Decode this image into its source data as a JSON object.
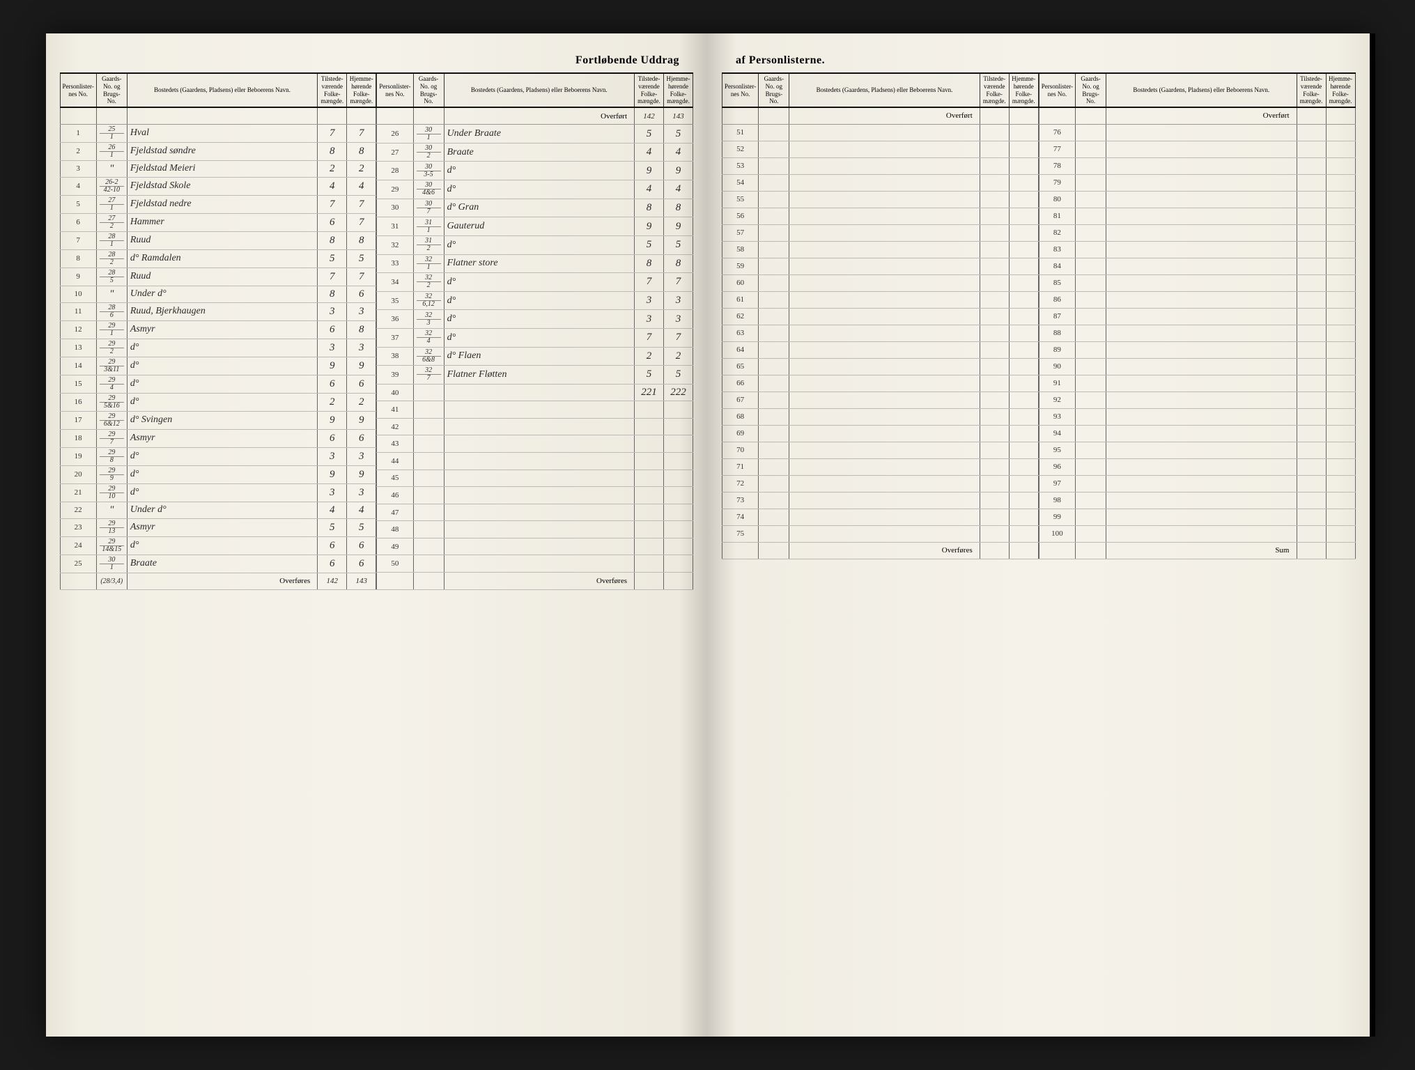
{
  "title_left": "Fortløbende Uddrag",
  "title_right": "af Personlisterne.",
  "headers": {
    "personliste": "Personlister-nes No.",
    "gaards": "Gaards-No. og Brugs-No.",
    "bosted": "Bostedets (Gaardens, Pladsens) eller Beboerens Navn.",
    "tilstede": "Tilstede-værende Folke-mængde.",
    "hjemme": "Hjemme-hørende Folke-mængde."
  },
  "overfort": "Overført",
  "overfores": "Overføres",
  "sum": "Sum",
  "overfort_vals_col2": {
    "tilst": "142",
    "hjem": "143"
  },
  "col1": {
    "rows": [
      {
        "n": "1",
        "g": "25/1",
        "name": "Hval",
        "t": "7",
        "h": "7"
      },
      {
        "n": "2",
        "g": "26/1",
        "name": "Fjeldstad søndre",
        "t": "8",
        "h": "8"
      },
      {
        "n": "3",
        "g": "\"",
        "name": "Fjeldstad Meieri",
        "t": "2",
        "h": "2"
      },
      {
        "n": "4",
        "g": "26-2/42-10",
        "name": "Fjeldstad Skole",
        "t": "4",
        "h": "4"
      },
      {
        "n": "5",
        "g": "27/1",
        "name": "Fjeldstad nedre",
        "t": "7",
        "h": "7"
      },
      {
        "n": "6",
        "g": "27/2",
        "name": "Hammer",
        "t": "6",
        "h": "7"
      },
      {
        "n": "7",
        "g": "28/1",
        "name": "Ruud",
        "t": "8",
        "h": "8"
      },
      {
        "n": "8",
        "g": "28/2",
        "name": "d° Ramdalen",
        "t": "5",
        "h": "5"
      },
      {
        "n": "9",
        "g": "28/5",
        "name": "Ruud",
        "t": "7",
        "h": "7"
      },
      {
        "n": "10",
        "g": "\"",
        "name": "Under d°",
        "t": "8",
        "h": "6"
      },
      {
        "n": "11",
        "g": "28/6",
        "name": "Ruud, Bjerkhaugen",
        "t": "3",
        "h": "3"
      },
      {
        "n": "12",
        "g": "29/1",
        "name": "Asmyr",
        "t": "6",
        "h": "8"
      },
      {
        "n": "13",
        "g": "29/2",
        "name": "d°",
        "t": "3",
        "h": "3"
      },
      {
        "n": "14",
        "g": "29/3&11",
        "name": "d°",
        "t": "9",
        "h": "9"
      },
      {
        "n": "15",
        "g": "29/4",
        "name": "d°",
        "t": "6",
        "h": "6"
      },
      {
        "n": "16",
        "g": "29/5&16",
        "name": "d°",
        "t": "2",
        "h": "2"
      },
      {
        "n": "17",
        "g": "29/6&12",
        "name": "d° Svingen",
        "t": "9",
        "h": "9"
      },
      {
        "n": "18",
        "g": "29/7",
        "name": "Asmyr",
        "t": "6",
        "h": "6"
      },
      {
        "n": "19",
        "g": "29/8",
        "name": "d°",
        "t": "3",
        "h": "3"
      },
      {
        "n": "20",
        "g": "29/9",
        "name": "d°",
        "t": "9",
        "h": "9"
      },
      {
        "n": "21",
        "g": "29/10",
        "name": "d°",
        "t": "3",
        "h": "3"
      },
      {
        "n": "22",
        "g": "\"",
        "name": "Under d°",
        "t": "4",
        "h": "4"
      },
      {
        "n": "23",
        "g": "29/13",
        "name": "Asmyr",
        "t": "5",
        "h": "5"
      },
      {
        "n": "24",
        "g": "29/14&15",
        "name": "d°",
        "t": "6",
        "h": "6"
      },
      {
        "n": "25",
        "g": "30/1",
        "name": "Braate",
        "t": "6",
        "h": "6"
      }
    ],
    "overfores_vals": {
      "t": "142",
      "h": "143"
    },
    "footnote_g": "(28/3,4)"
  },
  "col2": {
    "rows": [
      {
        "n": "26",
        "g": "30/1",
        "name": "Under Braate",
        "t": "5",
        "h": "5"
      },
      {
        "n": "27",
        "g": "30/2",
        "name": "Braate",
        "t": "4",
        "h": "4"
      },
      {
        "n": "28",
        "g": "30/3-5",
        "name": "d°",
        "t": "9",
        "h": "9"
      },
      {
        "n": "29",
        "g": "30/4&6",
        "name": "d°",
        "t": "4",
        "h": "4"
      },
      {
        "n": "30",
        "g": "30/7",
        "name": "d° Gran",
        "t": "8",
        "h": "8"
      },
      {
        "n": "31",
        "g": "31/1",
        "name": "Gauterud",
        "t": "9",
        "h": "9"
      },
      {
        "n": "32",
        "g": "31/2",
        "name": "d°",
        "t": "5",
        "h": "5"
      },
      {
        "n": "33",
        "g": "32/1",
        "name": "Flatner store",
        "t": "8",
        "h": "8"
      },
      {
        "n": "34",
        "g": "32/2",
        "name": "d°",
        "t": "7",
        "h": "7"
      },
      {
        "n": "35",
        "g": "32/6,12",
        "name": "d°",
        "t": "3",
        "h": "3"
      },
      {
        "n": "36",
        "g": "32/3",
        "name": "d°",
        "t": "3",
        "h": "3"
      },
      {
        "n": "37",
        "g": "32/4",
        "name": "d°",
        "t": "7",
        "h": "7"
      },
      {
        "n": "38",
        "g": "32/6&8",
        "name": "d° Flaen",
        "t": "2",
        "h": "2"
      },
      {
        "n": "39",
        "g": "32/7",
        "name": "Flatner Fløtten",
        "t": "5",
        "h": "5"
      },
      {
        "n": "40",
        "g": "",
        "name": "",
        "t": "221",
        "h": "222"
      },
      {
        "n": "41",
        "g": "",
        "name": "",
        "t": "",
        "h": ""
      },
      {
        "n": "42",
        "g": "",
        "name": "",
        "t": "",
        "h": ""
      },
      {
        "n": "43",
        "g": "",
        "name": "",
        "t": "",
        "h": ""
      },
      {
        "n": "44",
        "g": "",
        "name": "",
        "t": "",
        "h": ""
      },
      {
        "n": "45",
        "g": "",
        "name": "",
        "t": "",
        "h": ""
      },
      {
        "n": "46",
        "g": "",
        "name": "",
        "t": "",
        "h": ""
      },
      {
        "n": "47",
        "g": "",
        "name": "",
        "t": "",
        "h": ""
      },
      {
        "n": "48",
        "g": "",
        "name": "",
        "t": "",
        "h": ""
      },
      {
        "n": "49",
        "g": "",
        "name": "",
        "t": "",
        "h": ""
      },
      {
        "n": "50",
        "g": "",
        "name": "",
        "t": "",
        "h": ""
      }
    ]
  },
  "col3": {
    "rows": [
      {
        "n": "51"
      },
      {
        "n": "52"
      },
      {
        "n": "53"
      },
      {
        "n": "54"
      },
      {
        "n": "55"
      },
      {
        "n": "56"
      },
      {
        "n": "57"
      },
      {
        "n": "58"
      },
      {
        "n": "59"
      },
      {
        "n": "60"
      },
      {
        "n": "61"
      },
      {
        "n": "62"
      },
      {
        "n": "63"
      },
      {
        "n": "64"
      },
      {
        "n": "65"
      },
      {
        "n": "66"
      },
      {
        "n": "67"
      },
      {
        "n": "68"
      },
      {
        "n": "69"
      },
      {
        "n": "70"
      },
      {
        "n": "71"
      },
      {
        "n": "72"
      },
      {
        "n": "73"
      },
      {
        "n": "74"
      },
      {
        "n": "75"
      }
    ]
  },
  "col4": {
    "rows": [
      {
        "n": "76"
      },
      {
        "n": "77"
      },
      {
        "n": "78"
      },
      {
        "n": "79"
      },
      {
        "n": "80"
      },
      {
        "n": "81"
      },
      {
        "n": "82"
      },
      {
        "n": "83"
      },
      {
        "n": "84"
      },
      {
        "n": "85"
      },
      {
        "n": "86"
      },
      {
        "n": "87"
      },
      {
        "n": "88"
      },
      {
        "n": "89"
      },
      {
        "n": "90"
      },
      {
        "n": "91"
      },
      {
        "n": "92"
      },
      {
        "n": "93"
      },
      {
        "n": "94"
      },
      {
        "n": "95"
      },
      {
        "n": "96"
      },
      {
        "n": "97"
      },
      {
        "n": "98"
      },
      {
        "n": "99"
      },
      {
        "n": "100"
      }
    ]
  }
}
